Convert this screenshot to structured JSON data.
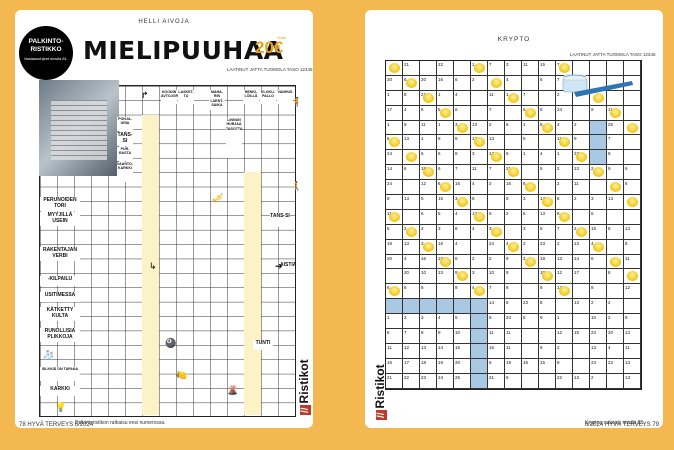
{
  "left": {
    "section": "HELLI AIVOJA",
    "title": "MIELIPUUHAA",
    "prize_amount": "20€",
    "prize_label": "Voita",
    "level": "LAATINUT JATTA TUOMOLA TASO 12345",
    "badge_title_1": "PALKINTO-",
    "badge_title_2": "RISTIKKO",
    "badge_sub": "Vastausohjeet sivulla 81.",
    "footer_note": "Palkintoristikon ratkaisu ensi numerossa.",
    "page_number": "78",
    "page_footer": "HYVÄ TERVEYS 6/2024",
    "brand": "Ristikot",
    "clues": [
      "POHJA-URIA",
      "TANS-SI",
      "PUR-RASTA",
      "VAAHTO-KARKKI",
      "LASKET-TU",
      "MAHA-RIN LUENT-SAIKA",
      "LINNUN HURJAA TASOTTA",
      "HENKI-LÖILLÄ",
      "ELOKU-PALLO",
      "VANHUS",
      "KOODIN AVTOJOR",
      "RUNOLLISIA PLIKKOJA",
      "RAKENTAJAN VERBI",
      "USITIMESSA",
      "KÄTKETTY KULTA",
      "-KILPAILU",
      "PERUNOIDEN TORI",
      "MYYJILLÄ USEIN",
      "KARKKI",
      "TUNTI",
      "AISTIA",
      "TANS-SI",
      "SILKKIÄ ON TAPANA"
    ]
  },
  "right": {
    "section": "KRYPTO",
    "level": "LAATINUT JATTA TUOMOLA TASO 12345",
    "footer_note": "Krypton ratkaisu sivulla 81.",
    "page_number": "79",
    "page_footer": "6/2024 HYVÄ TERVEYS",
    "brand": "Ristikot",
    "rows": [
      [
        "",
        "21",
        "",
        "22",
        "",
        "1",
        "7",
        "3",
        "11",
        "15",
        "7",
        "",
        "",
        "",
        ""
      ],
      [
        "20",
        "6",
        "20",
        "16",
        "6",
        "2",
        "",
        "4",
        "",
        "6",
        "7",
        "",
        "",
        "",
        ""
      ],
      [
        "1",
        "8",
        "21",
        "1",
        "4",
        "",
        "11",
        "1",
        "7",
        "",
        "2",
        "",
        "",
        "",
        ""
      ],
      [
        "17",
        "4",
        "8",
        "5",
        "6",
        "",
        "7",
        "",
        "6",
        "8",
        "24",
        "",
        "9",
        "11",
        ""
      ],
      [
        "1",
        "9",
        "11",
        "1",
        "3",
        "13",
        "2",
        "6",
        "1",
        "8",
        "2",
        "2",
        "",
        "25",
        ""
      ],
      [
        "5",
        "13",
        "1",
        "8",
        "5",
        "12",
        "13",
        "",
        "5",
        "",
        "11",
        "9",
        "",
        "7",
        ""
      ],
      [
        "24",
        "",
        "6",
        "6",
        "8",
        "3",
        "13",
        "6",
        "1",
        "4",
        "1",
        "23",
        "",
        "8",
        ""
      ],
      [
        "14",
        "6",
        "18",
        "6",
        "7",
        "11",
        "7",
        "21",
        "",
        "5",
        "2",
        "13",
        "2",
        "9",
        "6"
      ],
      [
        "24",
        "",
        "12",
        "6",
        "16",
        "4",
        "2",
        "16",
        "6",
        "",
        "2",
        "11",
        "",
        "",
        "6"
      ],
      [
        "8",
        "13",
        "5",
        "15",
        "3",
        "8",
        "",
        "9",
        "3",
        "13",
        "8",
        "2",
        "3",
        "13",
        ""
      ],
      [
        "11",
        "",
        "6",
        "5",
        "4",
        "13",
        "6",
        "2",
        "6",
        "13",
        "8",
        "",
        "6",
        "",
        ""
      ],
      [
        "5",
        "2",
        "2",
        "3",
        "8",
        "4",
        "3",
        "",
        "3",
        "6",
        "7",
        "2",
        "15",
        "8",
        "13"
      ],
      [
        "19",
        "13",
        "3",
        "16",
        "4",
        "",
        "24",
        "4",
        "2",
        "23",
        "2",
        "13",
        "4",
        "",
        "8"
      ],
      [
        "20",
        "4",
        "16",
        "19",
        "6",
        "2",
        "2",
        "9",
        "2",
        "18",
        "13",
        "14",
        "6",
        "",
        "11"
      ],
      [
        "",
        "20",
        "10",
        "13",
        "9",
        "3",
        "10",
        "9",
        "",
        "10",
        "12",
        "17",
        "",
        "8",
        ""
      ],
      [
        "6",
        "6",
        "8",
        "",
        "8",
        "4",
        "7",
        "8",
        "",
        "8",
        "13",
        "",
        "8",
        "",
        "12"
      ],
      [
        "",
        "",
        "",
        "",
        "",
        "",
        "14",
        "6",
        "23",
        "8",
        "",
        "13",
        "2",
        "2",
        ""
      ],
      [
        "1",
        "2",
        "3",
        "4",
        "5",
        "",
        "6",
        "24",
        "8",
        "9",
        "1",
        "",
        "10",
        "2",
        "8"
      ],
      [
        "6",
        "7",
        "8",
        "9",
        "10",
        "",
        "11",
        "11",
        "",
        "",
        "12",
        "15",
        "23",
        "20",
        "13"
      ],
      [
        "11",
        "12",
        "13",
        "14",
        "15",
        "",
        "16",
        "11",
        "",
        "6",
        "2",
        "",
        "13",
        "4",
        "11"
      ],
      [
        "16",
        "17",
        "18",
        "19",
        "20",
        "",
        "6",
        "19",
        "16",
        "15",
        "8",
        "",
        "23",
        "22",
        "13"
      ],
      [
        "21",
        "22",
        "23",
        "24",
        "25",
        "",
        "21",
        "6",
        "",
        "",
        "22",
        "13",
        "2",
        "",
        "13"
      ]
    ]
  }
}
